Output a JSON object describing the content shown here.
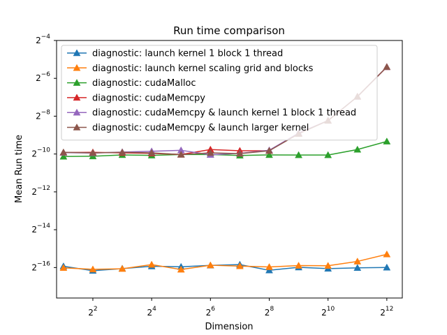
{
  "chart_data": {
    "type": "line",
    "title": "Run time comparison",
    "xlabel": "Dimension",
    "ylabel": "Mean Run time",
    "x_scale": "log2",
    "y_scale": "log2",
    "xlim": [
      1.7,
      5900
    ],
    "ylim": [
      5e-06,
      0.0625
    ],
    "x_ticks": [
      {
        "value": 4,
        "base": "2",
        "exp": "2"
      },
      {
        "value": 16,
        "base": "2",
        "exp": "4"
      },
      {
        "value": 64,
        "base": "2",
        "exp": "6"
      },
      {
        "value": 256,
        "base": "2",
        "exp": "8"
      },
      {
        "value": 1024,
        "base": "2",
        "exp": "10"
      },
      {
        "value": 4096,
        "base": "2",
        "exp": "12"
      }
    ],
    "y_ticks": [
      {
        "value": 1.52588e-05,
        "base": "2",
        "exp": "−16"
      },
      {
        "value": 6.10352e-05,
        "base": "2",
        "exp": "−14"
      },
      {
        "value": 0.000244141,
        "base": "2",
        "exp": "−12"
      },
      {
        "value": 0.000976563,
        "base": "2",
        "exp": "−10"
      },
      {
        "value": 0.00390625,
        "base": "2",
        "exp": "−8"
      },
      {
        "value": 0.015625,
        "base": "2",
        "exp": "−6"
      },
      {
        "value": 0.0625,
        "base": "2",
        "exp": "−4"
      }
    ],
    "grid": false,
    "legend_position": "top-left",
    "marker": "triangle",
    "x": [
      2,
      4,
      8,
      16,
      32,
      64,
      128,
      256,
      512,
      1024,
      2048,
      4096
    ],
    "series": [
      {
        "name": "diagnostic: launch kernel 1 block 1 thread",
        "color": "#1f77b4",
        "values": [
          1.6e-05,
          1.36e-05,
          1.47e-05,
          1.6e-05,
          1.57e-05,
          1.65e-05,
          1.7e-05,
          1.38e-05,
          1.54e-05,
          1.47e-05,
          1.51e-05,
          1.53e-05
        ]
      },
      {
        "name": "diagnostic: launch kernel scaling grid and blocks",
        "color": "#ff7f0e",
        "values": [
          1.51e-05,
          1.43e-05,
          1.46e-05,
          1.7e-05,
          1.42e-05,
          1.66e-05,
          1.61e-05,
          1.56e-05,
          1.64e-05,
          1.63e-05,
          1.91e-05,
          2.48e-05
        ]
      },
      {
        "name": "diagnostic: cudaMalloc",
        "color": "#2ca02c",
        "values": [
          0.00089,
          0.0009,
          0.000945,
          0.00093,
          0.00096,
          0.00096,
          0.000925,
          0.000945,
          0.00094,
          0.00094,
          0.00115,
          0.00155
        ]
      },
      {
        "name": "diagnostic: cudaMemcpy",
        "color": "#d62728",
        "values": [
          0.00103,
          0.00104,
          0.00102,
          0.001,
          0.00096,
          0.00115,
          0.0011,
          0.0011,
          0.0021,
          0.00332,
          0.008,
          0.0237
        ]
      },
      {
        "name": "diagnostic: cudaMemcpy & launch kernel 1 block 1 thread",
        "color": "#9467bd",
        "values": [
          0.00103,
          0.00101,
          0.00105,
          0.00108,
          0.00112,
          0.00095,
          0.001,
          0.00112,
          0.0021,
          0.00332,
          0.008,
          0.0237
        ]
      },
      {
        "name": "diagnostic: cudaMemcpy & launch larger kernel",
        "color": "#8c564b",
        "values": [
          0.00104,
          0.00102,
          0.00104,
          0.00102,
          0.000955,
          0.00102,
          0.00099,
          0.0011,
          0.00205,
          0.00332,
          0.008,
          0.0237
        ]
      }
    ]
  }
}
